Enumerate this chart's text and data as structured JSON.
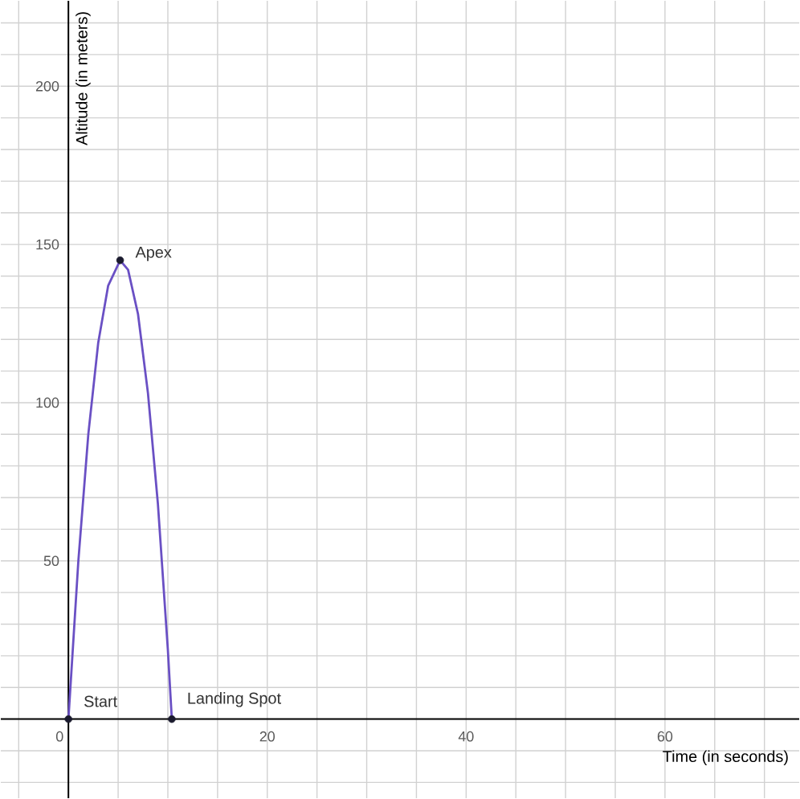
{
  "chart_data": {
    "type": "line",
    "xlabel": "Time (in seconds)",
    "ylabel": "Altitude (in meters)",
    "xlim": [
      -6.8,
      73.5
    ],
    "ylim": [
      -25,
      227
    ],
    "xticks": [
      {
        "value": -5,
        "label": null
      },
      {
        "value": 0,
        "label": "0"
      },
      {
        "value": 5,
        "label": null
      },
      {
        "value": 10,
        "label": null
      },
      {
        "value": 15,
        "label": null
      },
      20,
      {
        "value": 25,
        "label": null
      },
      {
        "value": 30,
        "label": null
      },
      {
        "value": 35,
        "label": null
      },
      40,
      {
        "value": 45,
        "label": null
      },
      {
        "value": 50,
        "label": null
      },
      {
        "value": 55,
        "label": null
      },
      60,
      {
        "value": 65,
        "label": null
      },
      {
        "value": 70,
        "label": null
      }
    ],
    "yticks": [
      {
        "value": -20,
        "label": null
      },
      {
        "value": -10,
        "label": null
      },
      {
        "value": 0,
        "label": null
      },
      {
        "value": 10,
        "label": null
      },
      {
        "value": 20,
        "label": null
      },
      {
        "value": 30,
        "label": null
      },
      {
        "value": 40,
        "label": null
      },
      50,
      {
        "value": 60,
        "label": null
      },
      {
        "value": 70,
        "label": null
      },
      {
        "value": 80,
        "label": null
      },
      {
        "value": 90,
        "label": null
      },
      100,
      {
        "value": 110,
        "label": null
      },
      {
        "value": 120,
        "label": null
      },
      {
        "value": 130,
        "label": null
      },
      {
        "value": 140,
        "label": null
      },
      150,
      {
        "value": 160,
        "label": null
      },
      {
        "value": 170,
        "label": null
      },
      {
        "value": 180,
        "label": null
      },
      {
        "value": 190,
        "label": null
      },
      200,
      {
        "value": 210,
        "label": null
      },
      {
        "value": 220,
        "label": null
      }
    ],
    "grid": true,
    "series": [
      {
        "color": "#6a50c4",
        "marker": "none",
        "x": [
          0,
          1,
          2,
          3,
          4,
          5.2,
          6,
          7,
          8,
          9,
          10,
          10.4
        ],
        "values": [
          0,
          50,
          90,
          119,
          137,
          145,
          142,
          128,
          103,
          68,
          22,
          0
        ]
      },
      {
        "type": "scatter",
        "color": "#1a1a2e",
        "marker": "circle",
        "x": [
          0,
          5.2,
          10.4
        ],
        "values": [
          0,
          145,
          0
        ]
      }
    ],
    "annotations": [
      {
        "text": "Start",
        "x": 0,
        "y": 0
      },
      {
        "text": "Apex",
        "x": 5.2,
        "y": 145
      },
      {
        "text": "Landing Spot",
        "x": 10.4,
        "y": 0
      }
    ]
  }
}
